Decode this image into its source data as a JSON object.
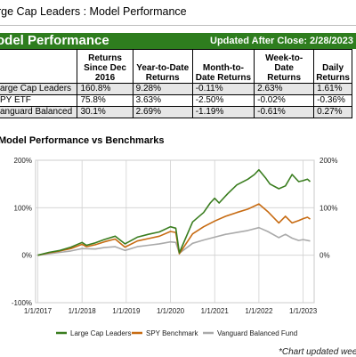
{
  "page": {
    "title": "rge Cap Leaders : Model Performance"
  },
  "banner": {
    "left": "odel Performance",
    "right": "Updated After Close:  2/28/2023"
  },
  "table": {
    "headers": [
      "",
      "Returns Since Dec 2016",
      "Year-to-Date Returns",
      "Month-to-Date Returns",
      "Week-to-Date Returns",
      "Daily Returns"
    ],
    "rows": [
      {
        "name": "arge Cap Leaders",
        "values": [
          "160.8%",
          "9.28%",
          "-0.11%",
          "2.63%",
          "1.61%"
        ]
      },
      {
        "name": "PY ETF",
        "values": [
          "75.8%",
          "3.63%",
          "-2.50%",
          "-0.02%",
          "-0.36%"
        ]
      },
      {
        "name": "anguard Balanced",
        "values": [
          "30.1%",
          "2.69%",
          "-1.19%",
          "-0.61%",
          "0.27%"
        ]
      }
    ]
  },
  "chart_title": "Model Performance vs Benchmarks",
  "footnote": "*Chart updated weekl",
  "chart_data": {
    "type": "line",
    "xlabel": "",
    "ylabel": "",
    "x_ticks": [
      "1/1/2017",
      "1/1/2018",
      "1/1/2019",
      "1/1/2020",
      "1/1/2021",
      "1/1/2022",
      "1/1/2023"
    ],
    "y_ticks_left": [
      "-100%",
      "0%",
      "100%",
      "200%"
    ],
    "y_ticks_right": [
      "0%",
      "100%",
      "200%"
    ],
    "ylim": [
      -100,
      200
    ],
    "xlim": [
      2016.95,
      2023.25
    ],
    "grid": true,
    "legend_position": "bottom",
    "series": [
      {
        "name": "Large Cap Leaders",
        "color": "#3a7d1f",
        "x": [
          2017.0,
          2017.25,
          2017.5,
          2017.75,
          2018.0,
          2018.1,
          2018.3,
          2018.5,
          2018.75,
          2018.97,
          2019.25,
          2019.5,
          2019.75,
          2020.0,
          2020.12,
          2020.2,
          2020.5,
          2020.75,
          2020.9,
          2021.0,
          2021.1,
          2021.3,
          2021.5,
          2021.75,
          2021.9,
          2022.0,
          2022.15,
          2022.25,
          2022.45,
          2022.6,
          2022.75,
          2022.9,
          2023.0,
          2023.1,
          2023.16
        ],
        "y": [
          0,
          6,
          10,
          17,
          27,
          21,
          26,
          33,
          40,
          24,
          38,
          44,
          49,
          60,
          57,
          5,
          70,
          90,
          110,
          120,
          110,
          130,
          148,
          160,
          170,
          180,
          163,
          150,
          140,
          146,
          170,
          155,
          157,
          160,
          155
        ]
      },
      {
        "name": "SPY Benchmark",
        "color": "#c76b12",
        "x": [
          2017.0,
          2017.25,
          2017.5,
          2017.75,
          2018.0,
          2018.1,
          2018.3,
          2018.5,
          2018.75,
          2018.97,
          2019.25,
          2019.5,
          2019.75,
          2020.0,
          2020.12,
          2020.2,
          2020.5,
          2020.75,
          2021.0,
          2021.25,
          2021.5,
          2021.75,
          2022.0,
          2022.2,
          2022.45,
          2022.6,
          2022.75,
          2022.9,
          2023.0,
          2023.1,
          2023.16
        ],
        "y": [
          0,
          5,
          9,
          14,
          23,
          18,
          22,
          28,
          34,
          17,
          30,
          35,
          40,
          50,
          48,
          3,
          45,
          60,
          72,
          82,
          90,
          97,
          108,
          92,
          68,
          82,
          68,
          73,
          77,
          80,
          76
        ]
      },
      {
        "name": "Vanguard Balanced Fund",
        "color": "#aaaaaa",
        "x": [
          2017.0,
          2017.25,
          2017.5,
          2017.75,
          2018.0,
          2018.3,
          2018.5,
          2018.75,
          2018.97,
          2019.25,
          2019.5,
          2019.75,
          2020.0,
          2020.12,
          2020.2,
          2020.5,
          2020.75,
          2021.0,
          2021.25,
          2021.5,
          2021.75,
          2022.0,
          2022.2,
          2022.45,
          2022.6,
          2022.75,
          2022.9,
          2023.0,
          2023.16
        ],
        "y": [
          0,
          3,
          6,
          9,
          14,
          13,
          16,
          18,
          10,
          18,
          21,
          24,
          28,
          27,
          4,
          25,
          32,
          38,
          44,
          48,
          52,
          58,
          50,
          37,
          44,
          36,
          31,
          33,
          30
        ]
      }
    ]
  }
}
